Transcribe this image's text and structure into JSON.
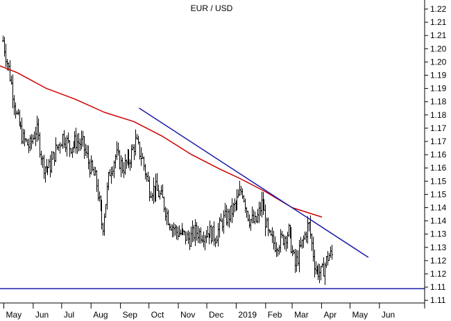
{
  "chart_data": {
    "type": "bar",
    "subtype": "ohlc",
    "title": "EUR / USD",
    "xlabel": "",
    "ylabel": "",
    "x_tick_labels": [
      "May",
      "Jun",
      "Jul",
      "Aug",
      "Sep",
      "Oct",
      "Nov",
      "Dec",
      "2019",
      "Feb",
      "Mar",
      "Apr",
      "May",
      "Jun"
    ],
    "y_tick_labels": [
      "1.22",
      "1.21",
      "1.21",
      "1.20",
      "1.20",
      "1.19",
      "1.19",
      "1.18",
      "1.18",
      "1.17",
      "1.17",
      "1.16",
      "1.16",
      "1.15",
      "1.15",
      "1.14",
      "1.14",
      "1.13",
      "1.13",
      "1.12",
      "1.12",
      "1.11",
      "1.11"
    ],
    "ylim": [
      1.1075,
      1.2225
    ],
    "grid": false,
    "price_close_path": [
      [
        "2018-04-30",
        1.208
      ],
      [
        "2018-05-07",
        1.195
      ],
      [
        "2018-05-14",
        1.18
      ],
      [
        "2018-05-21",
        1.171
      ],
      [
        "2018-05-28",
        1.168
      ],
      [
        "2018-06-04",
        1.175
      ],
      [
        "2018-06-11",
        1.161
      ],
      [
        "2018-06-18",
        1.16
      ],
      [
        "2018-06-25",
        1.167
      ],
      [
        "2018-07-02",
        1.172
      ],
      [
        "2018-07-09",
        1.168
      ],
      [
        "2018-07-16",
        1.17
      ],
      [
        "2018-07-23",
        1.169
      ],
      [
        "2018-07-30",
        1.161
      ],
      [
        "2018-08-06",
        1.155
      ],
      [
        "2018-08-13",
        1.137
      ],
      [
        "2018-08-20",
        1.158
      ],
      [
        "2018-08-27",
        1.165
      ],
      [
        "2018-09-03",
        1.16
      ],
      [
        "2018-09-10",
        1.163
      ],
      [
        "2018-09-17",
        1.17
      ],
      [
        "2018-09-24",
        1.163
      ],
      [
        "2018-10-01",
        1.152
      ],
      [
        "2018-10-08",
        1.152
      ],
      [
        "2018-10-15",
        1.148
      ],
      [
        "2018-10-22",
        1.14
      ],
      [
        "2018-10-29",
        1.136
      ],
      [
        "2018-11-05",
        1.135
      ],
      [
        "2018-11-12",
        1.133
      ],
      [
        "2018-11-19",
        1.136
      ],
      [
        "2018-11-26",
        1.135
      ],
      [
        "2018-12-03",
        1.136
      ],
      [
        "2018-12-10",
        1.134
      ],
      [
        "2018-12-17",
        1.14
      ],
      [
        "2018-12-24",
        1.142
      ],
      [
        "2018-12-31",
        1.146
      ],
      [
        "2019-01-07",
        1.152
      ],
      [
        "2019-01-14",
        1.141
      ],
      [
        "2019-01-21",
        1.139
      ],
      [
        "2019-01-28",
        1.147
      ],
      [
        "2019-02-04",
        1.134
      ],
      [
        "2019-02-11",
        1.131
      ],
      [
        "2019-02-18",
        1.133
      ],
      [
        "2019-02-25",
        1.136
      ],
      [
        "2019-03-04",
        1.123
      ],
      [
        "2019-03-11",
        1.131
      ],
      [
        "2019-03-18",
        1.139
      ],
      [
        "2019-03-25",
        1.122
      ],
      [
        "2019-04-01",
        1.12
      ],
      [
        "2019-04-08",
        1.127
      ]
    ],
    "series": [
      {
        "name": "",
        "style": "moving-average",
        "color": "#cc0000",
        "points": [
          [
            "2018-04-27",
            1.1985
          ],
          [
            "2018-05-15",
            1.196
          ],
          [
            "2018-06-15",
            1.19
          ],
          [
            "2018-07-15",
            1.186
          ],
          [
            "2018-08-15",
            1.181
          ],
          [
            "2018-09-15",
            1.1775
          ],
          [
            "2018-10-15",
            1.172
          ],
          [
            "2018-11-15",
            1.165
          ],
          [
            "2018-12-15",
            1.1595
          ],
          [
            "2019-01-05",
            1.156
          ],
          [
            "2019-02-01",
            1.151
          ],
          [
            "2019-03-01",
            1.145
          ],
          [
            "2019-04-01",
            1.1415
          ]
        ]
      },
      {
        "name": "",
        "style": "trendline",
        "color": "#1a1aaa",
        "points": [
          [
            "2018-09-21",
            1.1825
          ],
          [
            "2019-05-20",
            1.1263
          ]
        ]
      },
      {
        "name": "",
        "style": "horizontal-line",
        "color": "#1a1aaa",
        "points": [
          [
            "2018-04-27",
            1.1144
          ],
          [
            "2019-06-30",
            1.1144
          ]
        ]
      }
    ]
  }
}
